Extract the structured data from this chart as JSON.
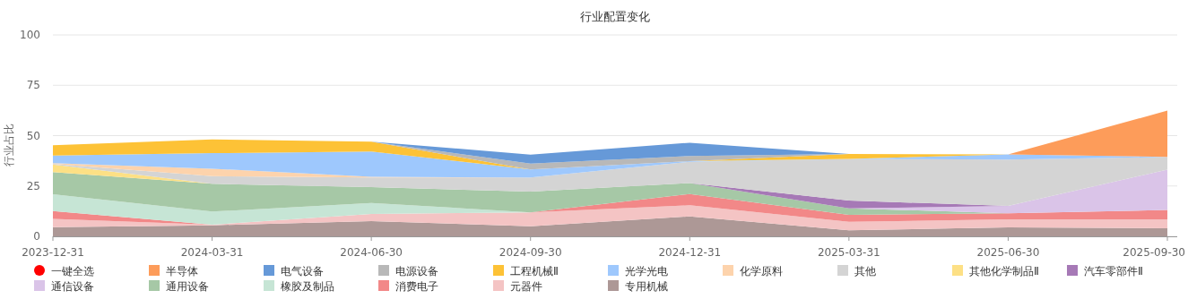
{
  "chart_data": {
    "type": "area",
    "stacked": true,
    "title": "行业配置变化",
    "ylabel": "行业占比",
    "categories": [
      "2023-12-31",
      "2024-03-31",
      "2024-06-30",
      "2024-09-30",
      "2024-12-31",
      "2025-03-31",
      "2025-06-30",
      "2025-09-30"
    ],
    "ylim": [
      0,
      100
    ],
    "yticks": [
      0,
      25,
      50,
      75,
      100
    ],
    "grid": "y",
    "legend": "bottom",
    "annotations": [
      "一键全选"
    ],
    "series": [
      {
        "name": "专用机械",
        "color": "#ad9896",
        "values": [
          4.6,
          5.5,
          7.6,
          5.0,
          9.9,
          3.0,
          4.5,
          4.0
        ]
      },
      {
        "name": "元器件",
        "color": "#f4c4c4",
        "values": [
          4.1,
          0.3,
          3.5,
          6.9,
          5.5,
          4.2,
          4.0,
          4.5
        ]
      },
      {
        "name": "消费电子",
        "color": "#f28888",
        "values": [
          3.9,
          0,
          0,
          0,
          5.6,
          3.5,
          3.0,
          4.6
        ]
      },
      {
        "name": "橡胶及制品",
        "color": "#c6e5d5",
        "values": [
          8.3,
          6.5,
          5.5,
          0,
          null,
          null,
          null,
          null
        ]
      },
      {
        "name": "通用设备",
        "color": "#a6c8a6",
        "values": [
          11.0,
          13.8,
          7.8,
          10.3,
          5.5,
          3.2,
          0,
          null
        ]
      },
      {
        "name": "通信设备",
        "color": "#dac4e8",
        "values": [
          null,
          null,
          null,
          null,
          null,
          0,
          3.6,
          20.0
        ]
      },
      {
        "name": "汽车零部件Ⅱ",
        "color": "#a679b6",
        "values": [
          null,
          null,
          null,
          null,
          0,
          3.9,
          0,
          null
        ]
      },
      {
        "name": "其他化学制品Ⅱ",
        "color": "#fde085",
        "values": [
          3.8,
          0,
          null,
          null,
          null,
          null,
          null,
          null
        ]
      },
      {
        "name": "其他",
        "color": "#d4d4d4",
        "values": [
          0.3,
          3.8,
          4.8,
          7.0,
          10.5,
          20.7,
          23.0,
          6.3
        ]
      },
      {
        "name": "化学原料",
        "color": "#fdd3ac",
        "values": [
          0.3,
          3.7,
          0.4,
          0,
          null,
          null,
          null,
          null
        ]
      },
      {
        "name": "光学光电",
        "color": "#9ec8fd",
        "values": [
          3.8,
          7.7,
          12.5,
          4.0,
          0.3,
          0,
          2.6,
          0
        ]
      },
      {
        "name": "工程机械Ⅱ",
        "color": "#fdc236",
        "values": [
          5.1,
          6.8,
          4.9,
          0,
          0,
          2.4,
          0,
          0
        ]
      },
      {
        "name": "电源设备",
        "color": "#b8b8b8",
        "values": [
          null,
          null,
          0,
          2.9,
          2.6,
          0,
          null,
          null
        ]
      },
      {
        "name": "电气设备",
        "color": "#6699d8",
        "values": [
          null,
          null,
          0,
          4.5,
          6.6,
          0,
          null,
          null
        ]
      },
      {
        "name": "半导体",
        "color": "#fd9c5a",
        "values": [
          null,
          null,
          null,
          null,
          null,
          null,
          0,
          23.0
        ]
      }
    ]
  }
}
